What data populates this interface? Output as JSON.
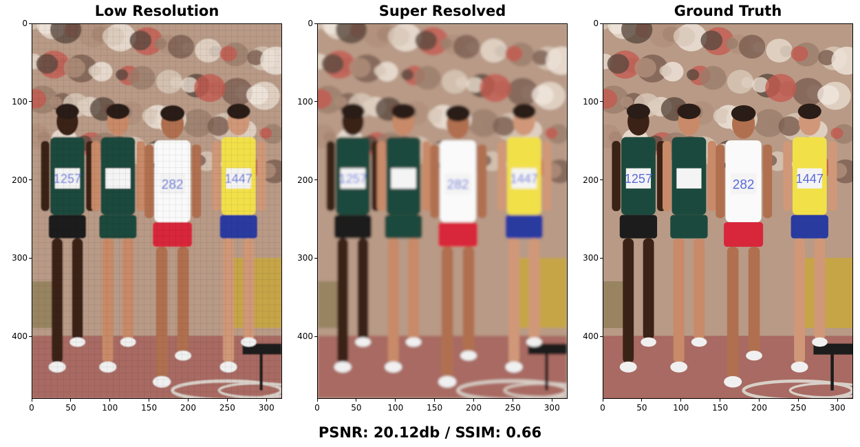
{
  "panels": [
    {
      "id": "low-resolution",
      "title": "Low Resolution",
      "style": "pixelated",
      "bibs": [
        "282",
        "1257",
        "1447"
      ]
    },
    {
      "id": "super-resolved",
      "title": "Super Resolved",
      "style": "smoothed",
      "bibs": [
        "282",
        "1257",
        "1447"
      ]
    },
    {
      "id": "ground-truth",
      "title": "Ground Truth",
      "style": "sharp",
      "bibs": [
        "282",
        "1257",
        "1447"
      ]
    }
  ],
  "axes": {
    "x_ticks": [
      "0",
      "50",
      "100",
      "150",
      "200",
      "250",
      "300"
    ],
    "y_ticks": [
      "0",
      "100",
      "200",
      "300",
      "400"
    ],
    "x_range": [
      0,
      320
    ],
    "y_range": [
      0,
      480
    ]
  },
  "caption": "PSNR: 20.12db / SSIM: 0.66",
  "colors": {
    "crowd": "#b89a86",
    "track": "#a86a62",
    "red_shorts": "#d8263a",
    "yellow_top": "#f2e04a",
    "blue_shorts": "#2c3aa0",
    "green_suit": "#1f4a3c",
    "bib_text": "#5a6ad8"
  }
}
